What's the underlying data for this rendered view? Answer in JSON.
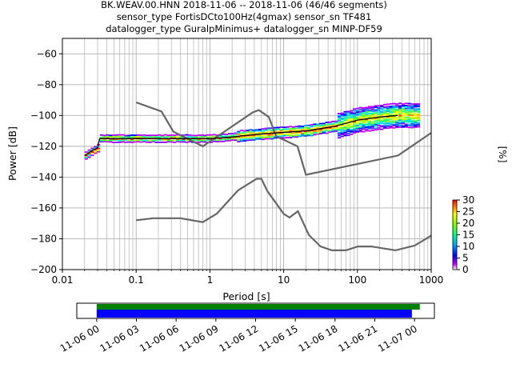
{
  "chart_data": [
    {
      "type": "heatmap",
      "title_lines": [
        "BK.WEAV.00.HNN   2018-11-06 -- 2018-11-06  (46/46 segments)",
        "sensor_type FortisDCto100Hz(4gmax) sensor_sn TF481",
        "datalogger_type GuralpMinimus+ datalogger_sn MINP-DF59"
      ],
      "xlabel": "Period [s]",
      "ylabel": "Power [dB]",
      "xscale": "log",
      "xlim": [
        0.01,
        1000
      ],
      "ylim": [
        -200,
        -50
      ],
      "x_ticks": [
        0.01,
        0.1,
        1,
        10,
        100,
        1000
      ],
      "x_tick_labels": [
        "0.01",
        "0.1",
        "1",
        "10",
        "100",
        "1000"
      ],
      "y_ticks": [
        -200,
        -180,
        -160,
        -140,
        -120,
        -100,
        -80,
        -60
      ],
      "grid": true,
      "noise_model_color": "#666666",
      "nhnm": {
        "period": [
          0.1,
          0.22,
          0.32,
          0.8,
          3.8,
          4.6,
          6.3,
          7.9,
          15.4,
          20,
          354.8,
          1000
        ],
        "power": [
          -91.5,
          -97.4,
          -110.5,
          -120,
          -98,
          -96.5,
          -101,
          -113.5,
          -120,
          -138.5,
          -126,
          -111.3
        ]
      },
      "nlnm": {
        "period": [
          0.1,
          0.17,
          0.4,
          0.8,
          1.24,
          2.4,
          4.3,
          5,
          6,
          10,
          12,
          15.6,
          21.9,
          31.6,
          45,
          70,
          101,
          154,
          328,
          600,
          1000
        ],
        "power": [
          -168,
          -166.7,
          -166.7,
          -169.2,
          -163.7,
          -148.6,
          -141.1,
          -141.1,
          -149,
          -163.8,
          -166.2,
          -162.1,
          -177.5,
          -185,
          -187.5,
          -187.5,
          -185,
          -185,
          -187.5,
          -184.4,
          -178
        ]
      },
      "mode_curve": {
        "period": [
          0.02,
          0.025,
          0.03,
          0.032,
          0.05,
          0.1,
          0.3,
          1,
          2,
          3,
          5,
          10,
          20,
          50,
          100,
          200,
          350
        ],
        "power": [
          -126,
          -123,
          -121,
          -115,
          -115,
          -115,
          -115,
          -115,
          -114,
          -113,
          -112,
          -111,
          -110,
          -107,
          -103,
          -101,
          -100
        ]
      },
      "colorbar": {
        "label": "[%]",
        "min": 0,
        "max": 30,
        "ticks": [
          0,
          5,
          10,
          15,
          20,
          25,
          30
        ]
      }
    },
    {
      "type": "timeline",
      "x_tick_labels": [
        "11-06 00",
        "11-06 03",
        "11-06 06",
        "11-06 09",
        "11-06 12",
        "11-06 15",
        "11-06 18",
        "11-06 21",
        "11-07 00"
      ],
      "xlim_hours": [
        -1.5,
        25.5
      ],
      "coverage": [
        {
          "name": "data",
          "color": "#008000",
          "start_hour": 0,
          "end_hour": 24.4
        },
        {
          "name": "psd",
          "color": "#0000ff",
          "start_hour": 0,
          "end_hour": 23.8
        }
      ]
    }
  ]
}
